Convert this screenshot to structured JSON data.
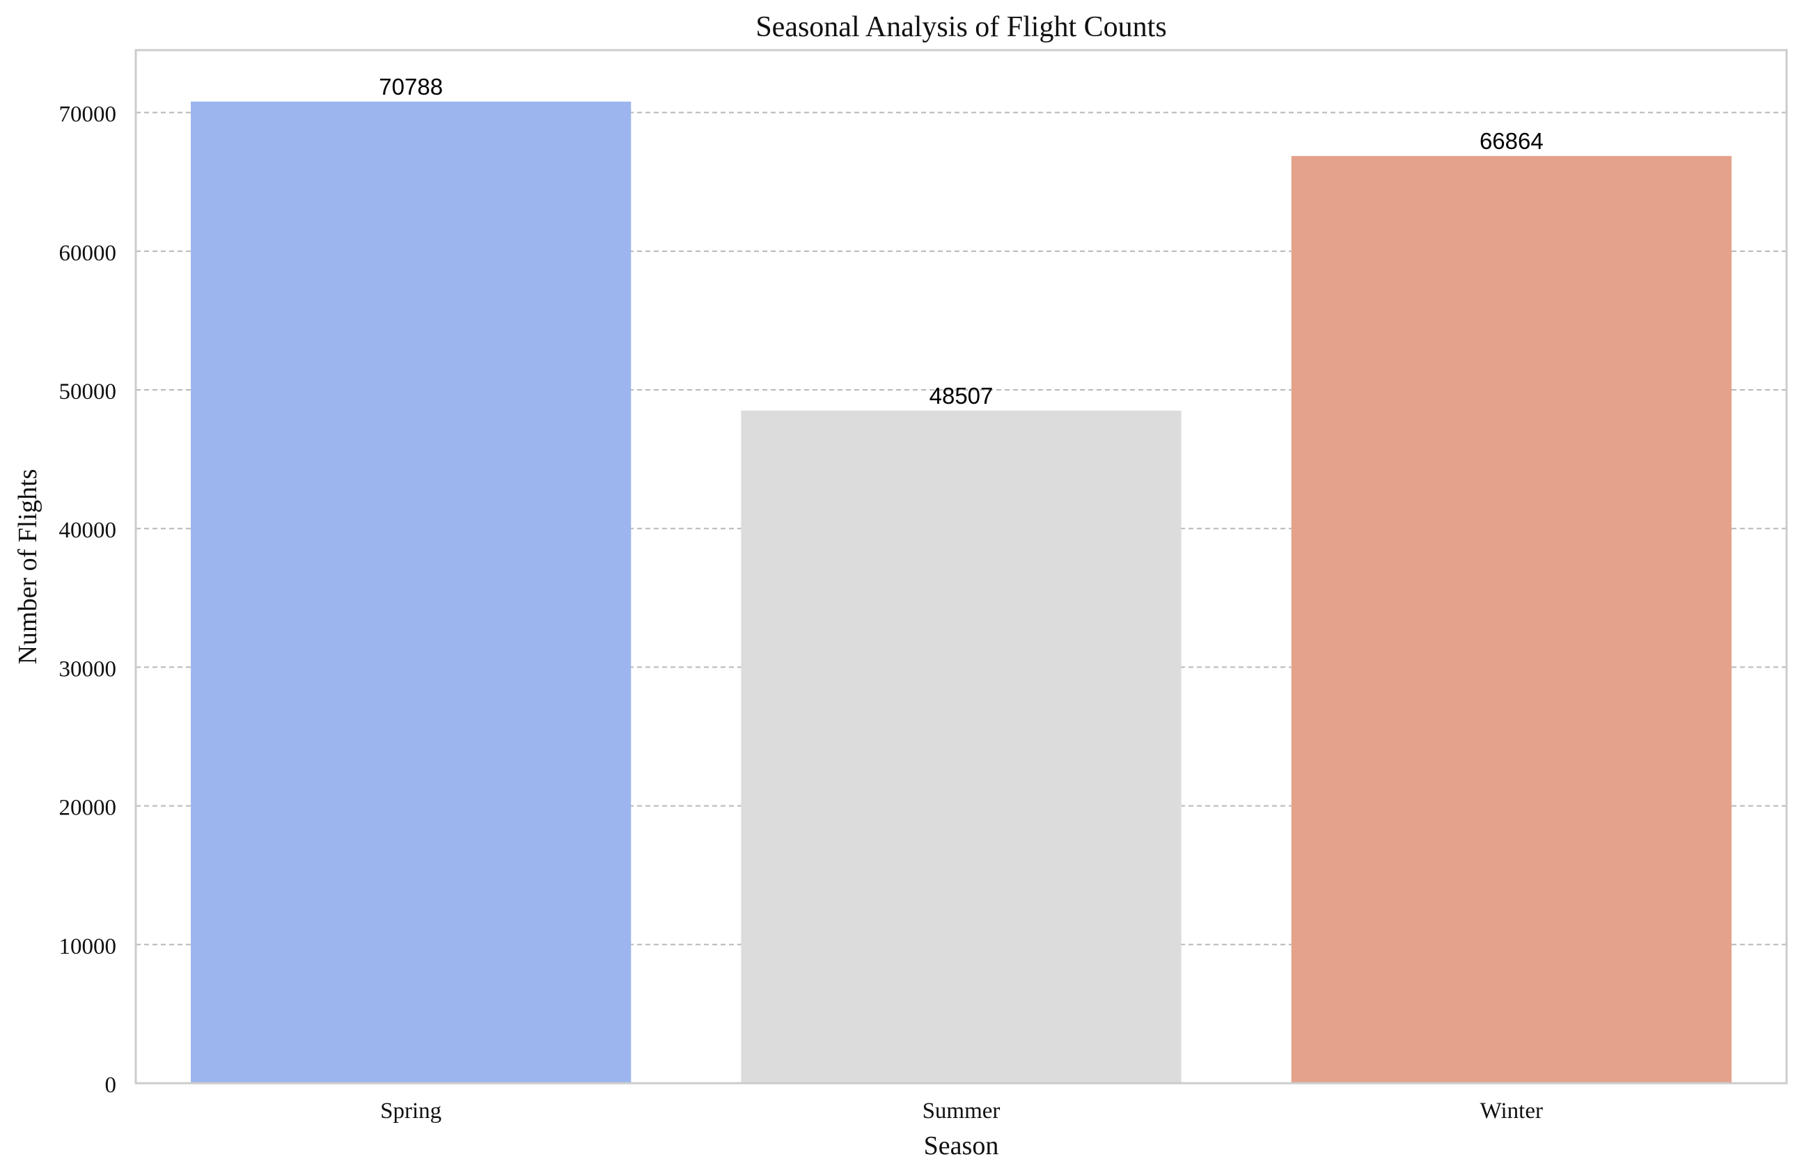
{
  "chart_data": {
    "type": "bar",
    "title": "Seasonal Analysis of Flight Counts",
    "xlabel": "Season",
    "ylabel": "Number of Flights",
    "categories": [
      "Spring",
      "Summer",
      "Winter"
    ],
    "values": [
      70788,
      48507,
      66864
    ],
    "data_labels": [
      "70788",
      "48507",
      "66864"
    ],
    "colors": [
      "#9cb5ee",
      "#dcdcdc",
      "#e4a28b"
    ],
    "ylim": [
      0,
      74500
    ],
    "yticks": [
      0,
      10000,
      20000,
      30000,
      40000,
      50000,
      60000,
      70000
    ],
    "ytick_labels": [
      "0",
      "10000",
      "20000",
      "30000",
      "40000",
      "50000",
      "60000",
      "70000"
    ],
    "grid": {
      "axis": "y",
      "style": "dashed",
      "color": "#b8b8b8"
    },
    "legend": "none"
  }
}
